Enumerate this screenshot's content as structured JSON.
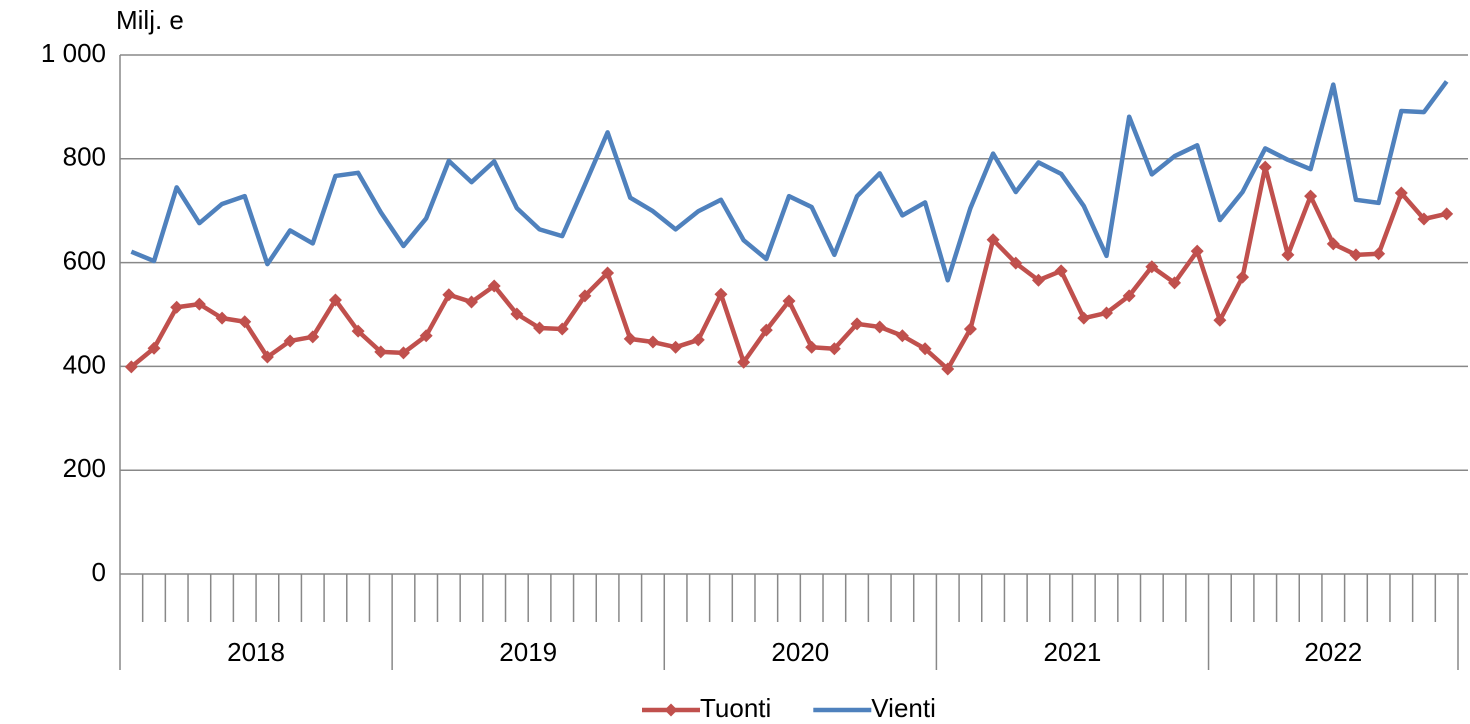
{
  "chart_data": {
    "type": "line",
    "y_unit": "Milj. e",
    "categories": [
      null,
      null,
      null,
      null,
      null,
      null,
      null,
      null,
      null,
      null,
      null,
      null,
      null,
      null,
      null,
      null,
      null,
      null,
      null,
      null,
      null,
      null,
      null,
      null,
      null,
      null,
      null,
      null,
      null,
      null,
      null,
      null,
      null,
      null,
      null,
      null,
      null,
      null,
      null,
      null,
      null,
      null,
      null,
      null,
      null,
      null,
      null,
      null,
      null,
      null,
      null,
      null,
      null,
      null,
      null,
      null,
      null,
      null,
      null
    ],
    "years": [
      "2018",
      "2019",
      "2020",
      "2021",
      "2022"
    ],
    "series": [
      {
        "name": "Tuonti",
        "color": "#c0504d",
        "marker": "diamond",
        "values": [
          399,
          435,
          514,
          520,
          493,
          486,
          418,
          449,
          457,
          528,
          468,
          428,
          426,
          459,
          538,
          524,
          555,
          501,
          474,
          472,
          536,
          580,
          453,
          447,
          437,
          451,
          539,
          408,
          470,
          526,
          437,
          434,
          482,
          476,
          459,
          434,
          395,
          472,
          644,
          599,
          566,
          584,
          493,
          503,
          536,
          592,
          561,
          622,
          489,
          572,
          784,
          615,
          728,
          636,
          615,
          617,
          734,
          684,
          694
        ]
      },
      {
        "name": "Vienti",
        "color": "#4f81bd",
        "values": [
          621,
          603,
          745,
          676,
          713,
          728,
          597,
          662,
          637,
          767,
          773,
          697,
          632,
          685,
          796,
          755,
          795,
          705,
          664,
          651,
          750,
          851,
          725,
          699,
          664,
          699,
          721,
          643,
          607,
          728,
          707,
          615,
          728,
          772,
          691,
          716,
          566,
          705,
          810,
          736,
          793,
          771,
          709,
          613,
          881,
          770,
          805,
          826,
          682,
          736,
          820,
          798,
          780,
          943,
          721,
          715,
          892,
          890,
          949
        ]
      }
    ],
    "ylim": [
      0,
      1000
    ],
    "yticks": [
      0,
      200,
      400,
      600,
      800,
      {
        "value": 1000,
        "label": "1 000"
      }
    ],
    "grid": true,
    "legend": "bottom"
  }
}
